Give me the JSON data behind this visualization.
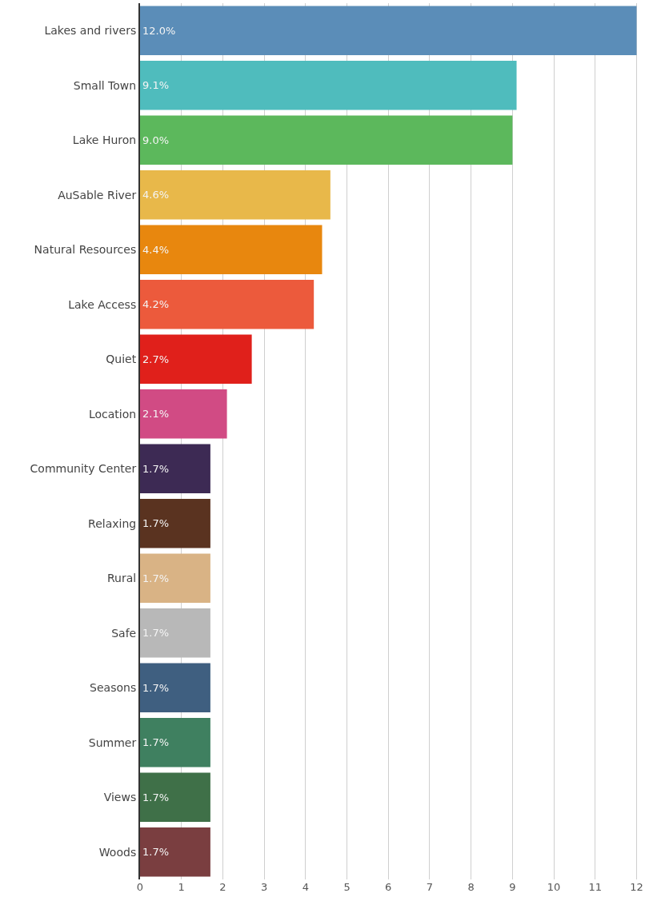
{
  "chart_data": {
    "type": "bar",
    "orientation": "horizontal",
    "categories": [
      "Lakes and rivers",
      "Small Town",
      "Lake Huron",
      "AuSable River",
      "Natural Resources",
      "Lake Access",
      "Quiet",
      "Location",
      "Community Center",
      "Relaxing",
      "Rural",
      "Safe",
      "Seasons",
      "Summer",
      "Views",
      "Woods"
    ],
    "values": [
      12.0,
      9.1,
      9.0,
      4.6,
      4.4,
      4.2,
      2.7,
      2.1,
      1.7,
      1.7,
      1.7,
      1.7,
      1.7,
      1.7,
      1.7,
      1.7
    ],
    "value_labels": [
      "12.0%",
      "9.1%",
      "9.0%",
      "4.6%",
      "4.4%",
      "4.2%",
      "2.7%",
      "2.1%",
      "1.7%",
      "1.7%",
      "1.7%",
      "1.7%",
      "1.7%",
      "1.7%",
      "1.7%",
      "1.7%"
    ],
    "colors": [
      "#5b8db8",
      "#4fbcbd",
      "#5cb85c",
      "#e8b84a",
      "#e8870e",
      "#ec5a3c",
      "#e0201b",
      "#d14b84",
      "#3d2a54",
      "#5a3320",
      "#d9b385",
      "#b8b8b8",
      "#3f5f80",
      "#3f8060",
      "#3f7048",
      "#7a3e40"
    ],
    "xlim": [
      0,
      12.3
    ],
    "xticks": [
      0,
      1,
      2,
      3,
      4,
      5,
      6,
      7,
      8,
      9,
      10,
      11,
      12
    ],
    "grid": "x",
    "legend": false
  }
}
